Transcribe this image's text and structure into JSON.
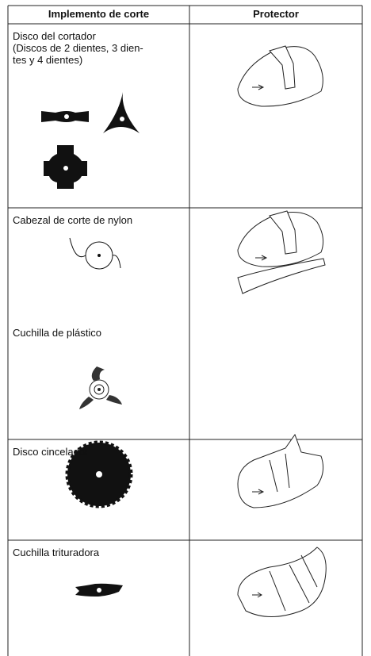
{
  "table": {
    "header": [
      "Implemento de corte",
      "Protector"
    ],
    "rows": [
      [
        [
          "Disco del cortador",
          "(Discos de 2 dientes, 3 dien-",
          "tes y 4 dientes)"
        ]
      ],
      [
        [
          "Cabezal de corte de nylon"
        ],
        [
          "Cuchilla de plástico"
        ]
      ],
      [
        [
          "Disco cincelador"
        ]
      ],
      [
        [
          "Cuchilla trituradora"
        ]
      ]
    ]
  }
}
